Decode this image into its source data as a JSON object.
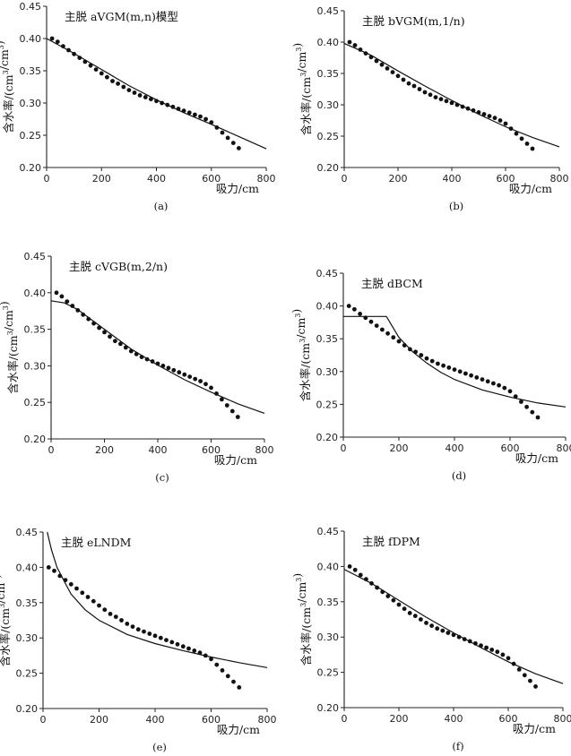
{
  "chart_data": [
    {
      "type": "scatter",
      "title": "主脱 aVGM(m,n)模型",
      "panel_label": "(a)",
      "xlabel": "吸力/cm",
      "ylabel": "含水率/(cm³/cm³)",
      "xlim": [
        0,
        800
      ],
      "ylim": [
        0.2,
        0.45
      ],
      "xticks": [
        "0",
        "200",
        "400",
        "600",
        "800"
      ],
      "yticks": [
        "0.20",
        "0.25",
        "0.30",
        "0.35",
        "0.40",
        "0.45"
      ],
      "series": [
        {
          "kind": "observed",
          "x": [
            20,
            40,
            60,
            80,
            100,
            120,
            140,
            160,
            180,
            200,
            220,
            240,
            260,
            280,
            300,
            320,
            340,
            360,
            380,
            400,
            420,
            440,
            460,
            480,
            500,
            520,
            540,
            560,
            580,
            600,
            620,
            640,
            660,
            680,
            700
          ],
          "y": [
            0.4,
            0.395,
            0.388,
            0.382,
            0.376,
            0.37,
            0.364,
            0.358,
            0.352,
            0.346,
            0.34,
            0.334,
            0.33,
            0.325,
            0.32,
            0.316,
            0.312,
            0.309,
            0.306,
            0.303,
            0.3,
            0.297,
            0.294,
            0.291,
            0.288,
            0.285,
            0.282,
            0.279,
            0.275,
            0.27,
            0.262,
            0.254,
            0.246,
            0.238,
            0.23
          ]
        },
        {
          "kind": "fitted",
          "x": [
            0,
            100,
            200,
            300,
            400,
            500,
            600,
            700,
            800
          ],
          "y": [
            0.4,
            0.377,
            0.352,
            0.327,
            0.305,
            0.285,
            0.267,
            0.248,
            0.229
          ]
        }
      ]
    },
    {
      "type": "scatter",
      "title": "主脱 bVGM(m,1/n)",
      "panel_label": "(b)",
      "xlabel": "吸力/cm",
      "ylabel": "含水率/(cm³/cm³)",
      "xlim": [
        0,
        800
      ],
      "ylim": [
        0.2,
        0.45
      ],
      "xticks": [
        "0",
        "200",
        "400",
        "600",
        "800"
      ],
      "yticks": [
        "0.20",
        "0.25",
        "0.30",
        "0.35",
        "0.40",
        "0.45"
      ],
      "series": [
        {
          "kind": "observed",
          "x": [
            20,
            40,
            60,
            80,
            100,
            120,
            140,
            160,
            180,
            200,
            220,
            240,
            260,
            280,
            300,
            320,
            340,
            360,
            380,
            400,
            420,
            440,
            460,
            480,
            500,
            520,
            540,
            560,
            580,
            600,
            620,
            640,
            660,
            680,
            700
          ],
          "y": [
            0.4,
            0.395,
            0.388,
            0.382,
            0.376,
            0.37,
            0.364,
            0.358,
            0.352,
            0.346,
            0.34,
            0.334,
            0.33,
            0.325,
            0.32,
            0.316,
            0.312,
            0.309,
            0.306,
            0.303,
            0.3,
            0.297,
            0.294,
            0.291,
            0.288,
            0.285,
            0.282,
            0.279,
            0.275,
            0.27,
            0.262,
            0.254,
            0.246,
            0.238,
            0.23
          ]
        },
        {
          "kind": "fitted",
          "x": [
            0,
            100,
            200,
            300,
            400,
            500,
            600,
            700,
            800
          ],
          "y": [
            0.398,
            0.379,
            0.354,
            0.33,
            0.307,
            0.285,
            0.265,
            0.248,
            0.233
          ]
        }
      ]
    },
    {
      "type": "scatter",
      "title": "主脱 cVGB(m,2/n)",
      "panel_label": "(c)",
      "xlabel": "吸力/cm",
      "ylabel": "含水率/(cm³/cm³)",
      "xlim": [
        0,
        800
      ],
      "ylim": [
        0.2,
        0.45
      ],
      "xticks": [
        "0",
        "200",
        "400",
        "600",
        "800"
      ],
      "yticks": [
        "0.20",
        "0.25",
        "0.30",
        "0.35",
        "0.40",
        "0.45"
      ],
      "series": [
        {
          "kind": "observed",
          "x": [
            20,
            40,
            60,
            80,
            100,
            120,
            140,
            160,
            180,
            200,
            220,
            240,
            260,
            280,
            300,
            320,
            340,
            360,
            380,
            400,
            420,
            440,
            460,
            480,
            500,
            520,
            540,
            560,
            580,
            600,
            620,
            640,
            660,
            680,
            700
          ],
          "y": [
            0.4,
            0.395,
            0.388,
            0.382,
            0.376,
            0.37,
            0.364,
            0.358,
            0.352,
            0.346,
            0.34,
            0.334,
            0.33,
            0.325,
            0.32,
            0.316,
            0.312,
            0.309,
            0.306,
            0.303,
            0.3,
            0.297,
            0.294,
            0.291,
            0.288,
            0.285,
            0.282,
            0.279,
            0.275,
            0.27,
            0.262,
            0.254,
            0.246,
            0.238,
            0.23
          ]
        },
        {
          "kind": "fitted",
          "x": [
            0,
            50,
            100,
            200,
            300,
            400,
            500,
            600,
            700,
            800
          ],
          "y": [
            0.389,
            0.386,
            0.377,
            0.35,
            0.323,
            0.301,
            0.281,
            0.264,
            0.248,
            0.235
          ]
        }
      ]
    },
    {
      "type": "scatter",
      "title": "主脱 dBCM",
      "panel_label": "(d)",
      "xlabel": "吸力/cm",
      "ylabel": "含水率/(cm³/cm³)",
      "xlim": [
        0,
        800
      ],
      "ylim": [
        0.2,
        0.45
      ],
      "xticks": [
        "0",
        "200",
        "400",
        "600",
        "800"
      ],
      "yticks": [
        "0.20",
        "0.25",
        "0.30",
        "0.35",
        "0.40",
        "0.45"
      ],
      "series": [
        {
          "kind": "observed",
          "x": [
            20,
            40,
            60,
            80,
            100,
            120,
            140,
            160,
            180,
            200,
            220,
            240,
            260,
            280,
            300,
            320,
            340,
            360,
            380,
            400,
            420,
            440,
            460,
            480,
            500,
            520,
            540,
            560,
            580,
            600,
            620,
            640,
            660,
            680,
            700
          ],
          "y": [
            0.4,
            0.395,
            0.388,
            0.382,
            0.376,
            0.37,
            0.364,
            0.358,
            0.352,
            0.346,
            0.34,
            0.334,
            0.33,
            0.325,
            0.32,
            0.316,
            0.312,
            0.309,
            0.306,
            0.303,
            0.3,
            0.297,
            0.294,
            0.291,
            0.288,
            0.285,
            0.282,
            0.279,
            0.275,
            0.27,
            0.262,
            0.254,
            0.246,
            0.238,
            0.23
          ]
        },
        {
          "kind": "fitted",
          "x": [
            0,
            155,
            200,
            250,
            300,
            350,
            400,
            500,
            600,
            700,
            800
          ],
          "y": [
            0.384,
            0.384,
            0.352,
            0.33,
            0.313,
            0.299,
            0.288,
            0.272,
            0.261,
            0.252,
            0.246
          ]
        }
      ]
    },
    {
      "type": "scatter",
      "title": "主脱 eLNDM",
      "panel_label": "(e)",
      "xlabel": "吸力/cm",
      "ylabel": "含水率/(cm³/cm³)",
      "xlim": [
        0,
        800
      ],
      "ylim": [
        0.2,
        0.45
      ],
      "xticks": [
        "0",
        "200",
        "400",
        "600",
        "800"
      ],
      "yticks": [
        "0.20",
        "0.25",
        "0.30",
        "0.35",
        "0.40",
        "0.45"
      ],
      "series": [
        {
          "kind": "observed",
          "x": [
            20,
            40,
            60,
            80,
            100,
            120,
            140,
            160,
            180,
            200,
            220,
            240,
            260,
            280,
            300,
            320,
            340,
            360,
            380,
            400,
            420,
            440,
            460,
            480,
            500,
            520,
            540,
            560,
            580,
            600,
            620,
            640,
            660,
            680,
            700
          ],
          "y": [
            0.4,
            0.395,
            0.388,
            0.382,
            0.376,
            0.37,
            0.364,
            0.358,
            0.352,
            0.346,
            0.34,
            0.334,
            0.33,
            0.325,
            0.32,
            0.316,
            0.312,
            0.309,
            0.306,
            0.303,
            0.3,
            0.297,
            0.294,
            0.291,
            0.288,
            0.285,
            0.282,
            0.279,
            0.275,
            0.27,
            0.262,
            0.254,
            0.246,
            0.238,
            0.23
          ]
        },
        {
          "kind": "fitted",
          "x": [
            15,
            30,
            50,
            80,
            100,
            150,
            200,
            300,
            400,
            500,
            600,
            700,
            800
          ],
          "y": [
            0.45,
            0.425,
            0.4,
            0.377,
            0.362,
            0.34,
            0.325,
            0.305,
            0.292,
            0.282,
            0.273,
            0.265,
            0.258
          ]
        }
      ]
    },
    {
      "type": "scatter",
      "title": "主脱 fDPM",
      "panel_label": "(f)",
      "xlabel": "吸力/cm",
      "ylabel": "含水率/(cm³/cm³)",
      "xlim": [
        0,
        800
      ],
      "ylim": [
        0.2,
        0.45
      ],
      "xticks": [
        "0",
        "200",
        "400",
        "600",
        "800"
      ],
      "yticks": [
        "0.20",
        "0.25",
        "0.30",
        "0.35",
        "0.40",
        "0.45"
      ],
      "series": [
        {
          "kind": "observed",
          "x": [
            20,
            40,
            60,
            80,
            100,
            120,
            140,
            160,
            180,
            200,
            220,
            240,
            260,
            280,
            300,
            320,
            340,
            360,
            380,
            400,
            420,
            440,
            460,
            480,
            500,
            520,
            540,
            560,
            580,
            600,
            620,
            640,
            660,
            680,
            700
          ],
          "y": [
            0.4,
            0.395,
            0.388,
            0.382,
            0.376,
            0.37,
            0.364,
            0.358,
            0.352,
            0.346,
            0.34,
            0.334,
            0.33,
            0.325,
            0.32,
            0.316,
            0.312,
            0.309,
            0.306,
            0.303,
            0.3,
            0.297,
            0.294,
            0.291,
            0.288,
            0.285,
            0.282,
            0.279,
            0.275,
            0.27,
            0.262,
            0.254,
            0.246,
            0.238,
            0.23
          ]
        },
        {
          "kind": "fitted",
          "x": [
            0,
            100,
            200,
            300,
            400,
            500,
            600,
            700,
            800
          ],
          "y": [
            0.396,
            0.376,
            0.352,
            0.328,
            0.306,
            0.285,
            0.265,
            0.248,
            0.234
          ]
        }
      ]
    }
  ]
}
